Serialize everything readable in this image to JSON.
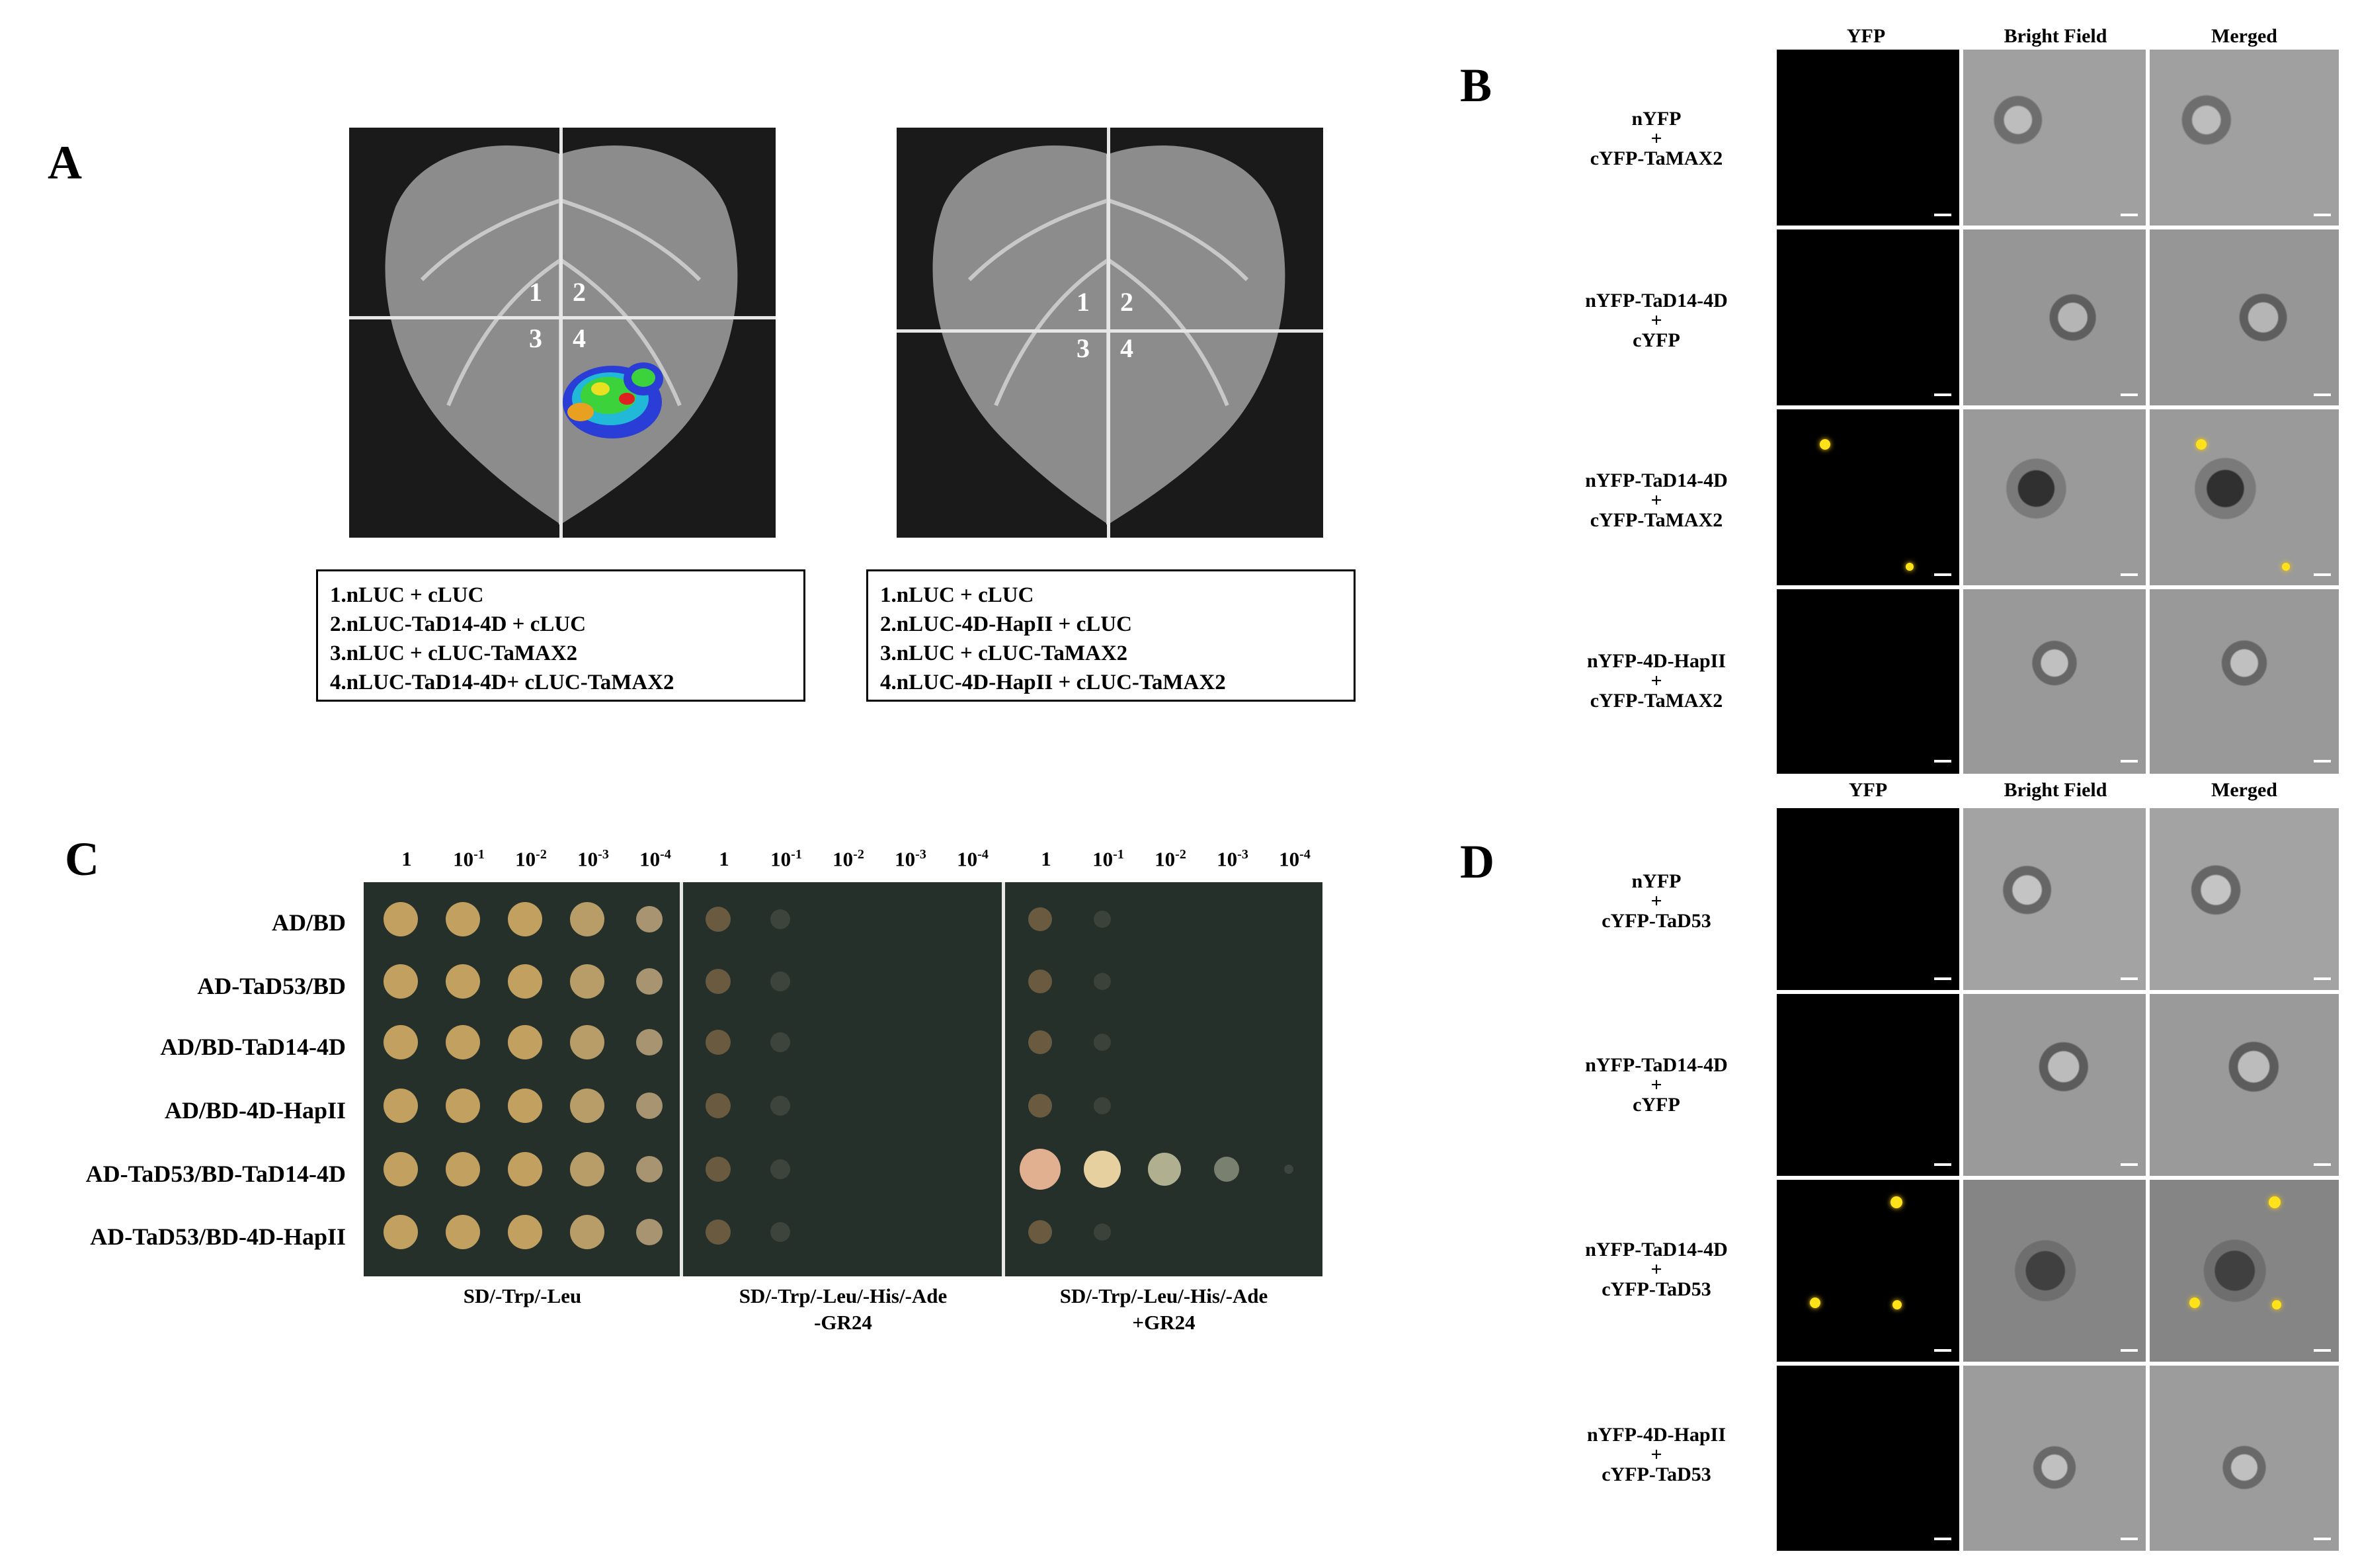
{
  "panelA": {
    "label": "A",
    "quadrants": [
      "1",
      "2",
      "3",
      "4"
    ],
    "legend_left": [
      "1.nLUC + cLUC",
      "2.nLUC-TaD14-4D + cLUC",
      "3.nLUC + cLUC-TaMAX2",
      "4.nLUC-TaD14-4D+ cLUC-TaMAX2"
    ],
    "legend_right": [
      "1.nLUC + cLUC",
      "2.nLUC-4D-HapII + cLUC",
      "3.nLUC + cLUC-TaMAX2",
      "4.nLUC-4D-HapII + cLUC-TaMAX2"
    ]
  },
  "panelB": {
    "label": "B",
    "columns": [
      "YFP",
      "Bright Field",
      "Merged"
    ],
    "rows": [
      [
        "nYFP",
        "+",
        "cYFP-TaMAX2"
      ],
      [
        "nYFP-TaD14-4D",
        "+",
        "cYFP"
      ],
      [
        "nYFP-TaD14-4D",
        "+",
        "cYFP-TaMAX2"
      ],
      [
        "nYFP-4D-HapII",
        "+",
        "cYFP-TaMAX2"
      ]
    ]
  },
  "panelC": {
    "label": "C",
    "dilutions": [
      "1",
      "10",
      "10",
      "10",
      "10"
    ],
    "exponents": [
      "",
      "-1",
      "-2",
      "-3",
      "-4"
    ],
    "rows": [
      "AD/BD",
      "AD-TaD53/BD",
      "AD/BD-TaD14-4D",
      "AD/BD-4D-HapII",
      "AD-TaD53/BD-TaD14-4D",
      "AD-TaD53/BD-4D-HapII"
    ],
    "plates": [
      [
        "SD/-Trp/-Leu"
      ],
      [
        "SD/-Trp/-Leu/-His/-Ade",
        "-GR24"
      ],
      [
        "SD/-Trp/-Leu/-His/-Ade",
        "+GR24"
      ]
    ]
  },
  "panelD": {
    "label": "D",
    "columns": [
      "YFP",
      "Bright Field",
      "Merged"
    ],
    "rows": [
      [
        "nYFP",
        "+",
        "cYFP-TaD53"
      ],
      [
        "nYFP-TaD14-4D",
        "+",
        "cYFP"
      ],
      [
        "nYFP-TaD14-4D",
        "+",
        "cYFP-TaD53"
      ],
      [
        "nYFP-4D-HapII",
        "+",
        "cYFP-TaD53"
      ]
    ]
  }
}
